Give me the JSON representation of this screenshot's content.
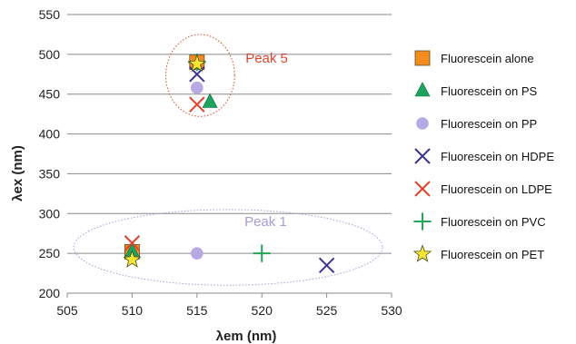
{
  "chart_data": {
    "type": "scatter",
    "title": "",
    "xlabel": "λem (nm)",
    "ylabel": "λex (nm)",
    "xlim": [
      505,
      530
    ],
    "ylim": [
      200,
      550
    ],
    "xticks": [
      "505",
      "510",
      "515",
      "520",
      "525",
      "530"
    ],
    "yticks": [
      "200",
      "250",
      "300",
      "350",
      "400",
      "450",
      "500",
      "550"
    ],
    "grid": "horizontal",
    "legend_position": "right",
    "series": [
      {
        "name": "Fluorescein alone",
        "marker": "square",
        "color": "#F28C1E",
        "points": [
          [
            510,
            252
          ],
          [
            515,
            490
          ]
        ]
      },
      {
        "name": "Fluorescein on PS",
        "marker": "triangle",
        "color": "#1DA35F",
        "points": [
          [
            510,
            252
          ],
          [
            516,
            440
          ]
        ]
      },
      {
        "name": "Fluorescein on PP",
        "marker": "circle",
        "color": "#B7A9E4",
        "points": [
          [
            515,
            250
          ],
          [
            515,
            458
          ]
        ]
      },
      {
        "name": "Fluorescein on HDPE",
        "marker": "x",
        "color": "#3B3492",
        "points": [
          [
            525,
            235
          ],
          [
            515,
            475
          ]
        ]
      },
      {
        "name": "Fluorescein on LDPE",
        "marker": "x",
        "color": "#E0452F",
        "points": [
          [
            510,
            263
          ],
          [
            515,
            437
          ]
        ]
      },
      {
        "name": "Fluorescein on PVC",
        "marker": "plus",
        "color": "#22A556",
        "points": [
          [
            520,
            250
          ],
          [
            515,
            490
          ]
        ]
      },
      {
        "name": "Fluorescein on PET",
        "marker": "star",
        "color": "#F7E733",
        "points": [
          [
            510,
            242
          ],
          [
            515,
            488
          ]
        ]
      }
    ],
    "annotations": [
      {
        "text": "Peak 5",
        "color": "#E0452F",
        "ellipse_style": "dotted",
        "ellipse_x": [
          512.6,
          517.9
        ],
        "ellipse_y": [
          422,
          525
        ]
      },
      {
        "text": "Peak 1",
        "color": "#A89BD9",
        "ellipse_style": "dotted",
        "ellipse_x": [
          505.5,
          529.3
        ],
        "ellipse_y": [
          210,
          305
        ]
      }
    ]
  }
}
